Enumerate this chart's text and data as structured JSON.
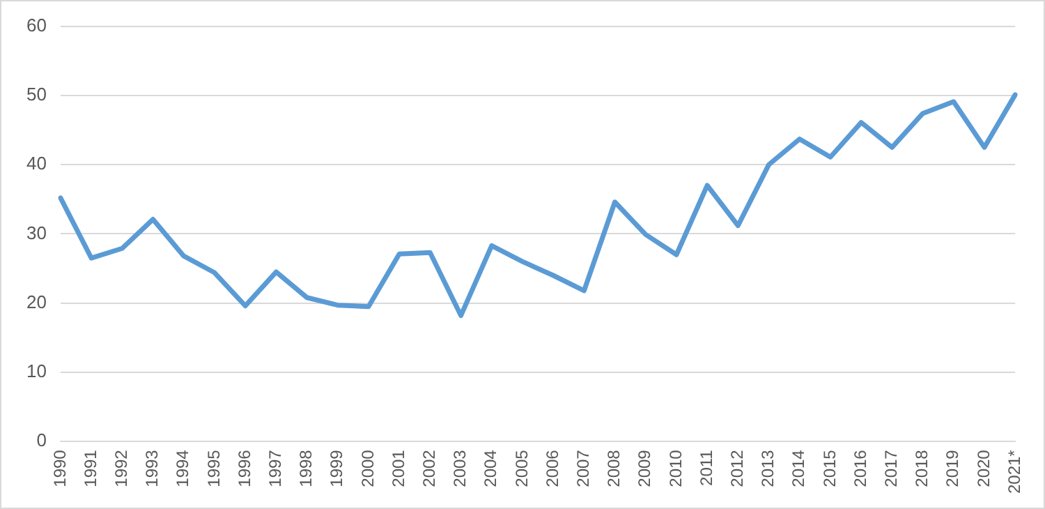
{
  "chart_data": {
    "type": "line",
    "categories": [
      "1990",
      "1991",
      "1992",
      "1993",
      "1994",
      "1995",
      "1996",
      "1997",
      "1998",
      "1999",
      "2000",
      "2001",
      "2002",
      "2003",
      "2004",
      "2005",
      "2006",
      "2007",
      "2008",
      "2009",
      "2010",
      "2011",
      "2012",
      "2013",
      "2014",
      "2015",
      "2016",
      "2017",
      "2018",
      "2019",
      "2020",
      "2021*"
    ],
    "series": [
      {
        "color": "#5b9bd5",
        "values": [
          35.2,
          26.5,
          27.9,
          32.1,
          26.8,
          24.4,
          19.6,
          24.5,
          20.8,
          19.7,
          19.5,
          27.1,
          27.3,
          18.2,
          28.3,
          26.0,
          24.0,
          21.8,
          34.6,
          29.9,
          27.0,
          37.0,
          31.2,
          40.0,
          43.7,
          41.1,
          46.1,
          42.5,
          47.4,
          49.1,
          42.5,
          50.1
        ]
      }
    ],
    "ylim": [
      0,
      60
    ],
    "yticks": [
      0,
      10,
      20,
      30,
      40,
      50,
      60
    ],
    "grid": "y",
    "legend": false,
    "marker": "none",
    "line_style": "solid"
  }
}
